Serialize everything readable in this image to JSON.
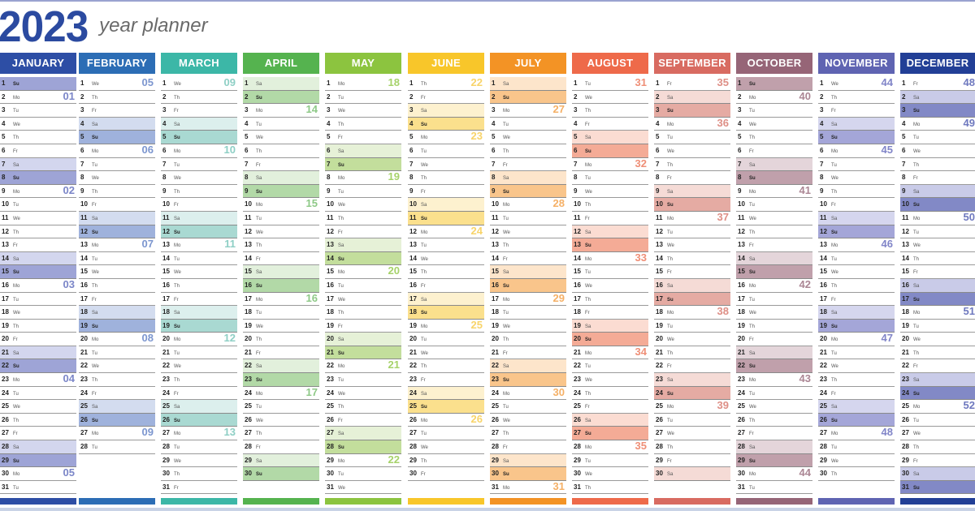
{
  "header": {
    "year": "2023",
    "subtitle": "year planner"
  },
  "months": [
    {
      "name": "JANUARY",
      "color": "#2d4ea5",
      "sat": "#d3d6ee",
      "sun": "#9ea4d6",
      "wk": "#7b86c8",
      "start": 0,
      "days": 31,
      "weeks": {
        "2": "01",
        "9": "02",
        "16": "03",
        "23": "04",
        "30": "05"
      }
    },
    {
      "name": "FEBRUARY",
      "color": "#2c6db5",
      "sat": "#d3dcef",
      "sun": "#9fb2dc",
      "wk": "#7c96cf",
      "start": 3,
      "days": 28,
      "weeks": {
        "1": "05",
        "6": "06",
        "13": "07",
        "20": "08",
        "27": "09"
      }
    },
    {
      "name": "MARCH",
      "color": "#3cb7a7",
      "sat": "#dcefed",
      "sun": "#a9d9d2",
      "wk": "#8ecfc5",
      "start": 3,
      "days": 31,
      "weeks": {
        "1": "09",
        "6": "10",
        "13": "11",
        "20": "12",
        "27": "13"
      }
    },
    {
      "name": "APRIL",
      "color": "#55b34f",
      "sat": "#e2f0dc",
      "sun": "#b2d9a7",
      "wk": "#8ec987",
      "start": 6,
      "days": 30,
      "weeks": {
        "3": "14",
        "10": "15",
        "17": "16",
        "24": "17"
      }
    },
    {
      "name": "MAY",
      "color": "#8cc43f",
      "sat": "#e6f1d7",
      "sun": "#c3de9c",
      "wk": "#a6d26a",
      "start": 1,
      "days": 31,
      "weeks": {
        "1": "18",
        "8": "19",
        "15": "20",
        "22": "21",
        "29": "22"
      }
    },
    {
      "name": "JUNE",
      "color": "#f8c62a",
      "sat": "#fdf1cf",
      "sun": "#fbe08d",
      "wk": "#f8d46a",
      "start": 4,
      "days": 30,
      "weeks": {
        "1": "22",
        "5": "23",
        "12": "24",
        "19": "25",
        "26": "26"
      }
    },
    {
      "name": "JULY",
      "color": "#f39325",
      "sat": "#fde5cb",
      "sun": "#f9c58b",
      "wk": "#f5b066",
      "start": 6,
      "days": 31,
      "weeks": {
        "3": "27",
        "10": "28",
        "17": "29",
        "24": "30",
        "31": "31"
      }
    },
    {
      "name": "AUGUST",
      "color": "#ee6a4a",
      "sat": "#fbdcd2",
      "sun": "#f4ab96",
      "wk": "#ef8f77",
      "start": 2,
      "days": 31,
      "weeks": {
        "1": "31",
        "7": "32",
        "14": "33",
        "21": "34",
        "28": "35"
      }
    },
    {
      "name": "SEPTEMBER",
      "color": "#d86b61",
      "sat": "#f5dbd6",
      "sun": "#e5aba3",
      "wk": "#de8f86",
      "start": 5,
      "days": 30,
      "weeks": {
        "1": "35",
        "4": "36",
        "11": "37",
        "18": "38",
        "25": "39"
      }
    },
    {
      "name": "OCTOBER",
      "color": "#966577",
      "sat": "#e4d5da",
      "sun": "#c0a0ab",
      "wk": "#ab8694",
      "start": 0,
      "days": 31,
      "weeks": {
        "2": "40",
        "9": "41",
        "16": "42",
        "23": "43",
        "30": "44"
      }
    },
    {
      "name": "NOVEMBER",
      "color": "#5f64b2",
      "sat": "#d5d6ee",
      "sun": "#a4a6d8",
      "wk": "#8185c8",
      "start": 3,
      "days": 30,
      "weeks": {
        "1": "44",
        "6": "45",
        "13": "46",
        "20": "47",
        "27": "48"
      }
    },
    {
      "name": "DECEMBER",
      "color": "#223f96",
      "sat": "#c9cbe8",
      "sun": "#8289c6",
      "wk": "#6f79bf",
      "start": 5,
      "days": 31,
      "weeks": {
        "1": "48",
        "4": "49",
        "11": "50",
        "18": "51",
        "25": "52"
      }
    }
  ],
  "weekday_labels": [
    "Su",
    "Mo",
    "Tu",
    "We",
    "Th",
    "Fr",
    "Sa"
  ],
  "column_positions": [
    0,
    97,
    198,
    299,
    400,
    502,
    603,
    704,
    805,
    906,
    1007,
    1108
  ]
}
